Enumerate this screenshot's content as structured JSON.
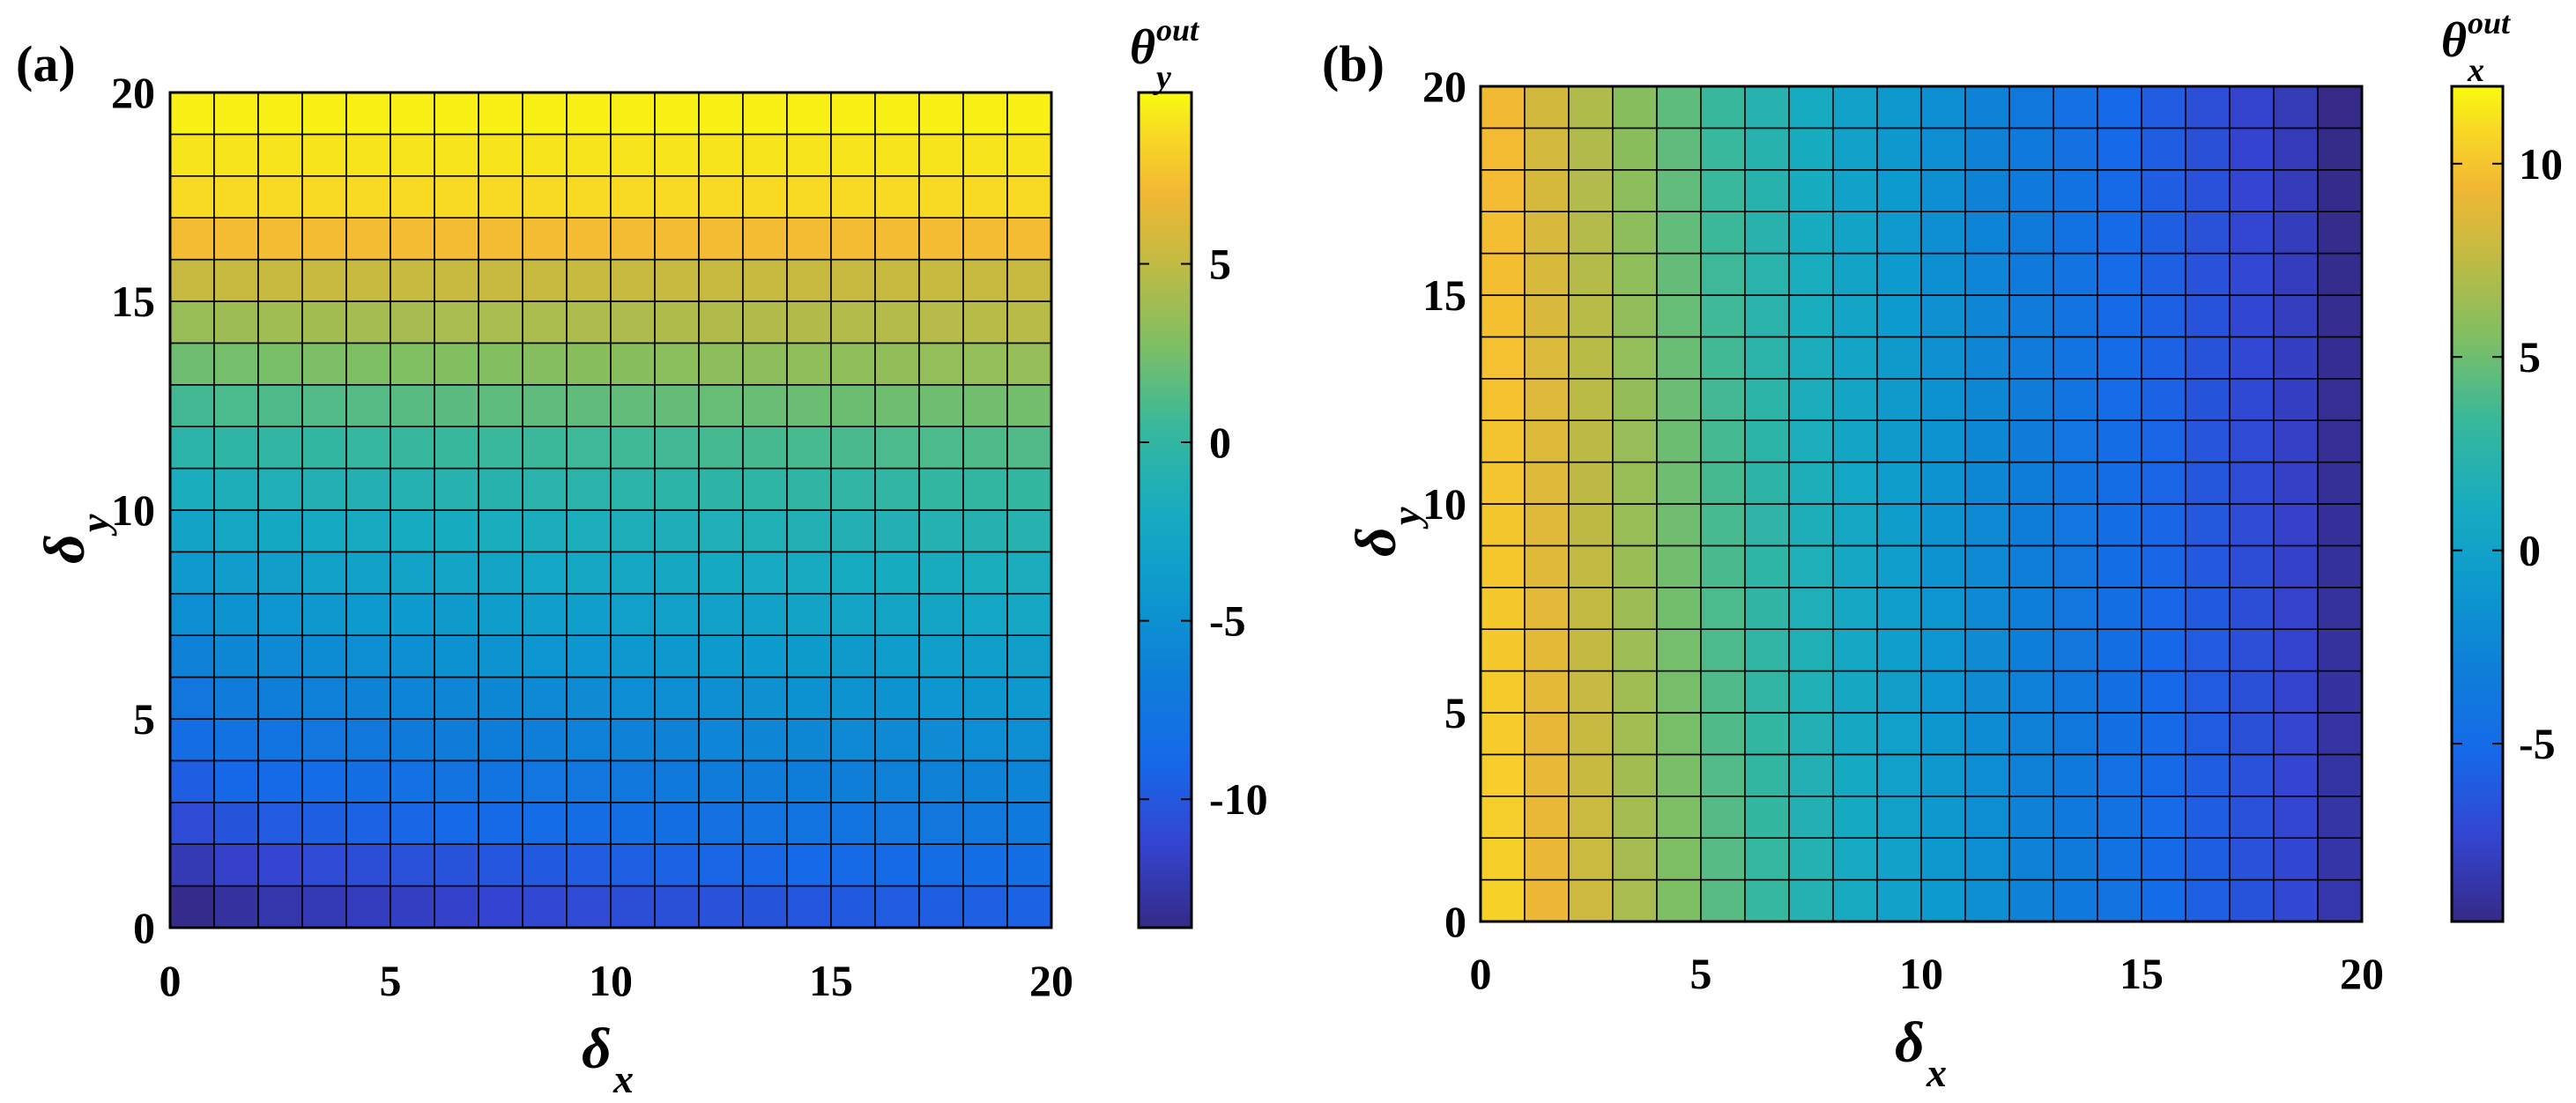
{
  "chart_data": [
    {
      "type": "heatmap",
      "panel_label": "(a)",
      "x_range": [
        0,
        20
      ],
      "y_range": [
        0,
        20
      ],
      "xticks": [
        "0",
        "5",
        "10",
        "15",
        "20"
      ],
      "yticks": [
        "0",
        "5",
        "10",
        "15",
        "20"
      ],
      "xlabel": {
        "symbol": "δ",
        "sub": "x"
      },
      "ylabel": {
        "symbol": "δ",
        "sub": "y"
      },
      "grid": true,
      "cells_x": 20,
      "cells_y": 20,
      "field": {
        "mode": "rows",
        "by_y": [
          -13.5,
          -12.2,
          -10.8,
          -9.6,
          -8.5,
          -7.4,
          -6.3,
          -5.2,
          -4.1,
          -3.0,
          -1.8,
          -0.5,
          0.8,
          2.2,
          3.6,
          5.2,
          7.2,
          8.6,
          9.0,
          9.4
        ],
        "x_gradient": 2.6
      },
      "colorbar": {
        "symbol": "θ",
        "sup": "out",
        "sub": "y",
        "range": [
          -13.6,
          9.8
        ],
        "ticks": [
          5,
          0,
          -5,
          -10
        ],
        "tick_labels": [
          "5",
          "0",
          "-5",
          "-10"
        ]
      }
    },
    {
      "type": "heatmap",
      "panel_label": "(b)",
      "x_range": [
        0,
        20
      ],
      "y_range": [
        0,
        20
      ],
      "xticks": [
        "0",
        "5",
        "10",
        "15",
        "20"
      ],
      "yticks": [
        "0",
        "5",
        "10",
        "15",
        "20"
      ],
      "xlabel": {
        "symbol": "δ",
        "sub": "x"
      },
      "ylabel": {
        "symbol": "δ",
        "sub": "y"
      },
      "grid": true,
      "cells_x": 20,
      "cells_y": 20,
      "field": {
        "mode": "cols",
        "by_x": [
          10.5,
          9.2,
          8.0,
          6.8,
          5.5,
          4.3,
          3.2,
          2.1,
          1.0,
          0.0,
          -0.9,
          -1.8,
          -2.7,
          -3.5,
          -4.3,
          -5.0,
          -5.8,
          -6.5,
          -7.2,
          -8.6
        ],
        "y_gradient": 1.0
      },
      "colorbar": {
        "symbol": "θ",
        "sup": "out",
        "sub": "x",
        "range": [
          -9.6,
          12.0
        ],
        "ticks": [
          10,
          5,
          0,
          -5
        ],
        "tick_labels": [
          "10",
          "5",
          "0",
          "-5"
        ]
      }
    }
  ]
}
